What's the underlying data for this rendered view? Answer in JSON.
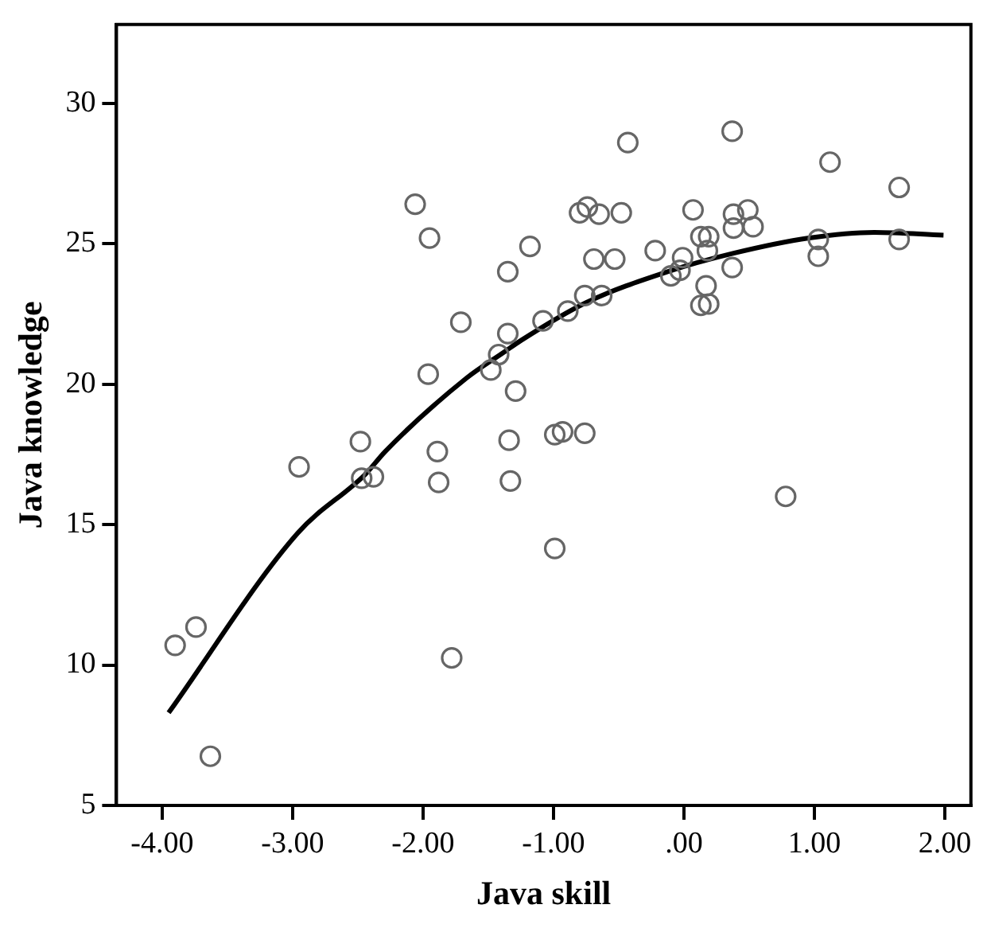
{
  "chart_data": {
    "type": "scatter",
    "xlabel": "Java skill",
    "ylabel": "Java knowledge",
    "xlim": [
      -4.35,
      2.2
    ],
    "ylim": [
      5,
      32.8
    ],
    "xticks": [
      {
        "value": -4,
        "label": "-4.00"
      },
      {
        "value": -3,
        "label": "-3.00"
      },
      {
        "value": -2,
        "label": "-2.00"
      },
      {
        "value": -1,
        "label": "-1.00"
      },
      {
        "value": 0,
        "label": ".00"
      },
      {
        "value": 1,
        "label": "1.00"
      },
      {
        "value": 2,
        "label": "2.00"
      }
    ],
    "yticks": [
      5,
      10,
      15,
      20,
      25,
      30
    ],
    "grid": false,
    "legend": false,
    "series": [
      {
        "color": "#666666",
        "marker": "circle",
        "x": [
          -3.9,
          -3.74,
          -3.63,
          -2.95,
          -2.48,
          -2.47,
          -2.38,
          -1.89,
          -1.88,
          -1.78,
          -1.34,
          -1.33,
          -0.99,
          -0.99,
          -0.93,
          -0.76,
          0.78,
          -2.06,
          -1.95,
          -1.71,
          -1.96,
          -1.35,
          -1.35,
          -1.42,
          -1.48,
          -1.29,
          -0.43,
          0.37,
          1.12,
          1.65,
          -1.18,
          -0.8,
          -0.74,
          -0.65,
          -0.48,
          -0.69,
          -0.53,
          -0.22,
          0.07,
          0.38,
          0.49,
          0.38,
          0.53,
          0.13,
          0.19,
          0.18,
          -0.01,
          -0.03,
          -0.1,
          0.37,
          0.17,
          0.13,
          0.19,
          1.03,
          1.03,
          1.65,
          -0.76,
          -0.63,
          -0.89,
          -1.08
        ],
        "values": [
          10.7,
          11.35,
          6.75,
          17.05,
          17.95,
          16.65,
          16.7,
          17.6,
          16.5,
          10.25,
          18.0,
          16.55,
          14.15,
          18.2,
          18.3,
          18.25,
          16.0,
          26.4,
          25.2,
          22.2,
          20.35,
          24.0,
          21.8,
          21.05,
          20.5,
          19.75,
          28.6,
          29.0,
          27.9,
          27.0,
          24.9,
          26.1,
          26.3,
          26.05,
          26.1,
          24.45,
          24.45,
          24.75,
          26.2,
          26.05,
          26.2,
          25.55,
          25.6,
          25.25,
          25.25,
          24.75,
          24.5,
          24.05,
          23.85,
          24.15,
          23.5,
          22.8,
          22.85,
          25.15,
          24.55,
          25.15,
          23.15,
          23.15,
          22.6,
          22.25
        ]
      },
      {
        "type": "line",
        "color": "#000000",
        "marker": "none",
        "x": [
          -3.95,
          -2.96,
          -2.44,
          -2.29,
          -1.67,
          -1.375,
          -1.25,
          -0.75,
          -0.125,
          0.375,
          0.96,
          1.46,
          1.99
        ],
        "values": [
          8.3,
          14.7,
          16.8,
          17.6,
          20.2,
          21.15,
          21.55,
          22.9,
          24.0,
          24.65,
          25.2,
          25.4,
          25.3
        ]
      }
    ]
  }
}
